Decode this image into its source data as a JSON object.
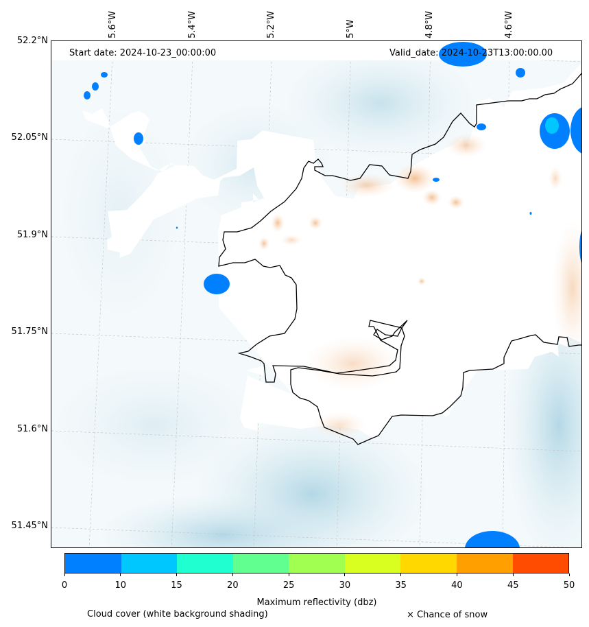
{
  "map": {
    "start_date_label": "Start date: 2024-10-23_00:00:00",
    "valid_date_label": "Valid_date: 2024-10-23T13:00:00.00",
    "lon_labels": [
      "5.6°W",
      "5.4°W",
      "5.2°W",
      "5°W",
      "4.8°W",
      "4.6°W"
    ],
    "lat_labels": [
      "52.2°N",
      "52.05°N",
      "51.9°N",
      "51.75°N",
      "51.6°N",
      "51.45°N"
    ],
    "colors": {
      "coastline": "#000000",
      "cloud_shading": "#cfe5ee",
      "gridline": "#bbbbbb",
      "warm_shading": "#f6c9a0"
    }
  },
  "colorbar": {
    "title": "Maximum reflectivity (dbz)",
    "ticks": [
      "0",
      "10",
      "15",
      "20",
      "25",
      "30",
      "35",
      "40",
      "45",
      "50"
    ],
    "colors": [
      "#0080ff",
      "#00c8ff",
      "#20ffd0",
      "#60ff90",
      "#a0ff50",
      "#d8ff20",
      "#ffd800",
      "#ffa000",
      "#ff4c00"
    ]
  },
  "legend": {
    "cloud_cover": "Cloud cover (white background shading)",
    "snow": "× Chance of snow"
  }
}
